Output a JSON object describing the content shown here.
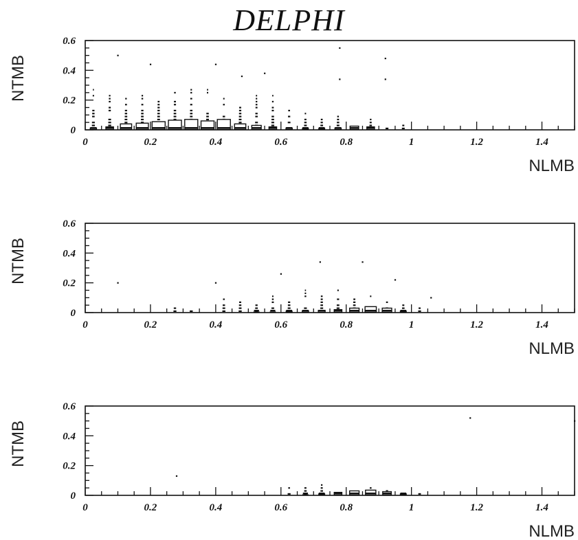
{
  "title": "DELPHI",
  "chart_data": [
    {
      "type": "scatter",
      "xlabel": "NLMB",
      "ylabel": "NTMB",
      "xlim": [
        0,
        1.5
      ],
      "ylim": [
        0,
        0.6
      ],
      "x_ticks": [
        0,
        0.2,
        0.4,
        0.6,
        0.8,
        1,
        1.2,
        1.4
      ],
      "y_ticks": [
        0,
        0.2,
        0.4,
        0.6
      ],
      "x_tick_labels": [
        "0",
        "0.2",
        "0.4",
        "0.6",
        "0.8",
        "1",
        "1.2",
        "1.4"
      ],
      "y_tick_labels": [
        "0",
        "0.2",
        "0.4",
        "0.6"
      ],
      "columns": [
        {
          "x": 0.025,
          "ymax": 0.28,
          "box": 0.012
        },
        {
          "x": 0.075,
          "ymax": 0.3,
          "box": 0.02
        },
        {
          "x": 0.125,
          "ymax": 0.28,
          "box": 0.04
        },
        {
          "x": 0.175,
          "ymax": 0.3,
          "box": 0.045
        },
        {
          "x": 0.225,
          "ymax": 0.32,
          "box": 0.055
        },
        {
          "x": 0.275,
          "ymax": 0.35,
          "box": 0.065
        },
        {
          "x": 0.325,
          "ymax": 0.35,
          "box": 0.07
        },
        {
          "x": 0.375,
          "ymax": 0.3,
          "box": 0.06
        },
        {
          "x": 0.425,
          "ymax": 0.25,
          "box": 0.07
        },
        {
          "x": 0.475,
          "ymax": 0.28,
          "box": 0.04
        },
        {
          "x": 0.525,
          "ymax": 0.26,
          "box": 0.03
        },
        {
          "x": 0.575,
          "ymax": 0.25,
          "box": 0.02
        },
        {
          "x": 0.625,
          "ymax": 0.2,
          "box": 0.012
        },
        {
          "x": 0.675,
          "ymax": 0.12,
          "box": 0.01
        },
        {
          "x": 0.725,
          "ymax": 0.1,
          "box": 0.01
        },
        {
          "x": 0.775,
          "ymax": 0.12,
          "box": 0.012
        },
        {
          "x": 0.825,
          "ymax": 0.1,
          "box": 0.025
        },
        {
          "x": 0.875,
          "ymax": 0.08,
          "box": 0.02
        },
        {
          "x": 0.925,
          "ymax": 0.05,
          "box": 0.0
        },
        {
          "x": 0.975,
          "ymax": 0.04,
          "box": 0.0
        }
      ],
      "outliers": [
        [
          0.1,
          0.5
        ],
        [
          0.2,
          0.44
        ],
        [
          0.4,
          0.44
        ],
        [
          0.48,
          0.36
        ],
        [
          0.55,
          0.38
        ],
        [
          0.78,
          0.55
        ],
        [
          0.92,
          0.48
        ],
        [
          0.78,
          0.34
        ],
        [
          0.92,
          0.34
        ]
      ]
    },
    {
      "type": "scatter",
      "xlabel": "NLMB",
      "ylabel": "NTMB",
      "xlim": [
        0,
        1.5
      ],
      "ylim": [
        0,
        0.6
      ],
      "x_ticks": [
        0,
        0.2,
        0.4,
        0.6,
        0.8,
        1,
        1.2,
        1.4
      ],
      "y_ticks": [
        0,
        0.2,
        0.4,
        0.6
      ],
      "x_tick_labels": [
        "0",
        "0.2",
        "0.4",
        "0.6",
        "0.8",
        "1",
        "1.2",
        "1.4"
      ],
      "y_tick_labels": [
        "0",
        "0.2",
        "0.4",
        "0.6"
      ],
      "columns": [
        {
          "x": 0.275,
          "ymax": 0.06,
          "box": 0.0
        },
        {
          "x": 0.325,
          "ymax": 0.08,
          "box": 0.0
        },
        {
          "x": 0.425,
          "ymax": 0.12,
          "box": 0.0
        },
        {
          "x": 0.475,
          "ymax": 0.12,
          "box": 0.0
        },
        {
          "x": 0.525,
          "ymax": 0.1,
          "box": 0.005
        },
        {
          "x": 0.575,
          "ymax": 0.12,
          "box": 0.005
        },
        {
          "x": 0.625,
          "ymax": 0.14,
          "box": 0.01
        },
        {
          "x": 0.675,
          "ymax": 0.15,
          "box": 0.012
        },
        {
          "x": 0.725,
          "ymax": 0.16,
          "box": 0.015
        },
        {
          "x": 0.775,
          "ymax": 0.18,
          "box": 0.02
        },
        {
          "x": 0.825,
          "ymax": 0.15,
          "box": 0.03
        },
        {
          "x": 0.875,
          "ymax": 0.12,
          "box": 0.04
        },
        {
          "x": 0.925,
          "ymax": 0.1,
          "box": 0.03
        },
        {
          "x": 0.975,
          "ymax": 0.08,
          "box": 0.01
        },
        {
          "x": 1.025,
          "ymax": 0.04,
          "box": 0.0
        }
      ],
      "outliers": [
        [
          0.1,
          0.2
        ],
        [
          0.6,
          0.26
        ],
        [
          0.72,
          0.34
        ],
        [
          0.85,
          0.34
        ],
        [
          0.4,
          0.2
        ],
        [
          0.95,
          0.22
        ],
        [
          1.06,
          0.1
        ]
      ]
    },
    {
      "type": "scatter",
      "xlabel": "NLMB",
      "ylabel": "NTMB",
      "xlim": [
        0,
        1.5
      ],
      "ylim": [
        0,
        0.6
      ],
      "x_ticks": [
        0,
        0.2,
        0.4,
        0.6,
        0.8,
        1,
        1.2,
        1.4
      ],
      "y_ticks": [
        0,
        0.2,
        0.4,
        0.6
      ],
      "x_tick_labels": [
        "0",
        "0.2",
        "0.4",
        "0.6",
        "0.8",
        "1",
        "1.2",
        "1.4"
      ],
      "y_tick_labels": [
        "0",
        "0.2",
        "0.4",
        "0.6"
      ],
      "columns": [
        {
          "x": 0.625,
          "ymax": 0.06,
          "box": 0.0
        },
        {
          "x": 0.675,
          "ymax": 0.08,
          "box": 0.005
        },
        {
          "x": 0.725,
          "ymax": 0.08,
          "box": 0.01
        },
        {
          "x": 0.775,
          "ymax": 0.07,
          "box": 0.02
        },
        {
          "x": 0.825,
          "ymax": 0.07,
          "box": 0.03
        },
        {
          "x": 0.875,
          "ymax": 0.06,
          "box": 0.035
        },
        {
          "x": 0.925,
          "ymax": 0.05,
          "box": 0.025
        },
        {
          "x": 0.975,
          "ymax": 0.04,
          "box": 0.01
        },
        {
          "x": 1.025,
          "ymax": 0.02,
          "box": 0.0
        }
      ],
      "outliers": [
        [
          0.28,
          0.13
        ],
        [
          1.18,
          0.52
        ],
        [
          1.5,
          0.5
        ]
      ]
    }
  ]
}
